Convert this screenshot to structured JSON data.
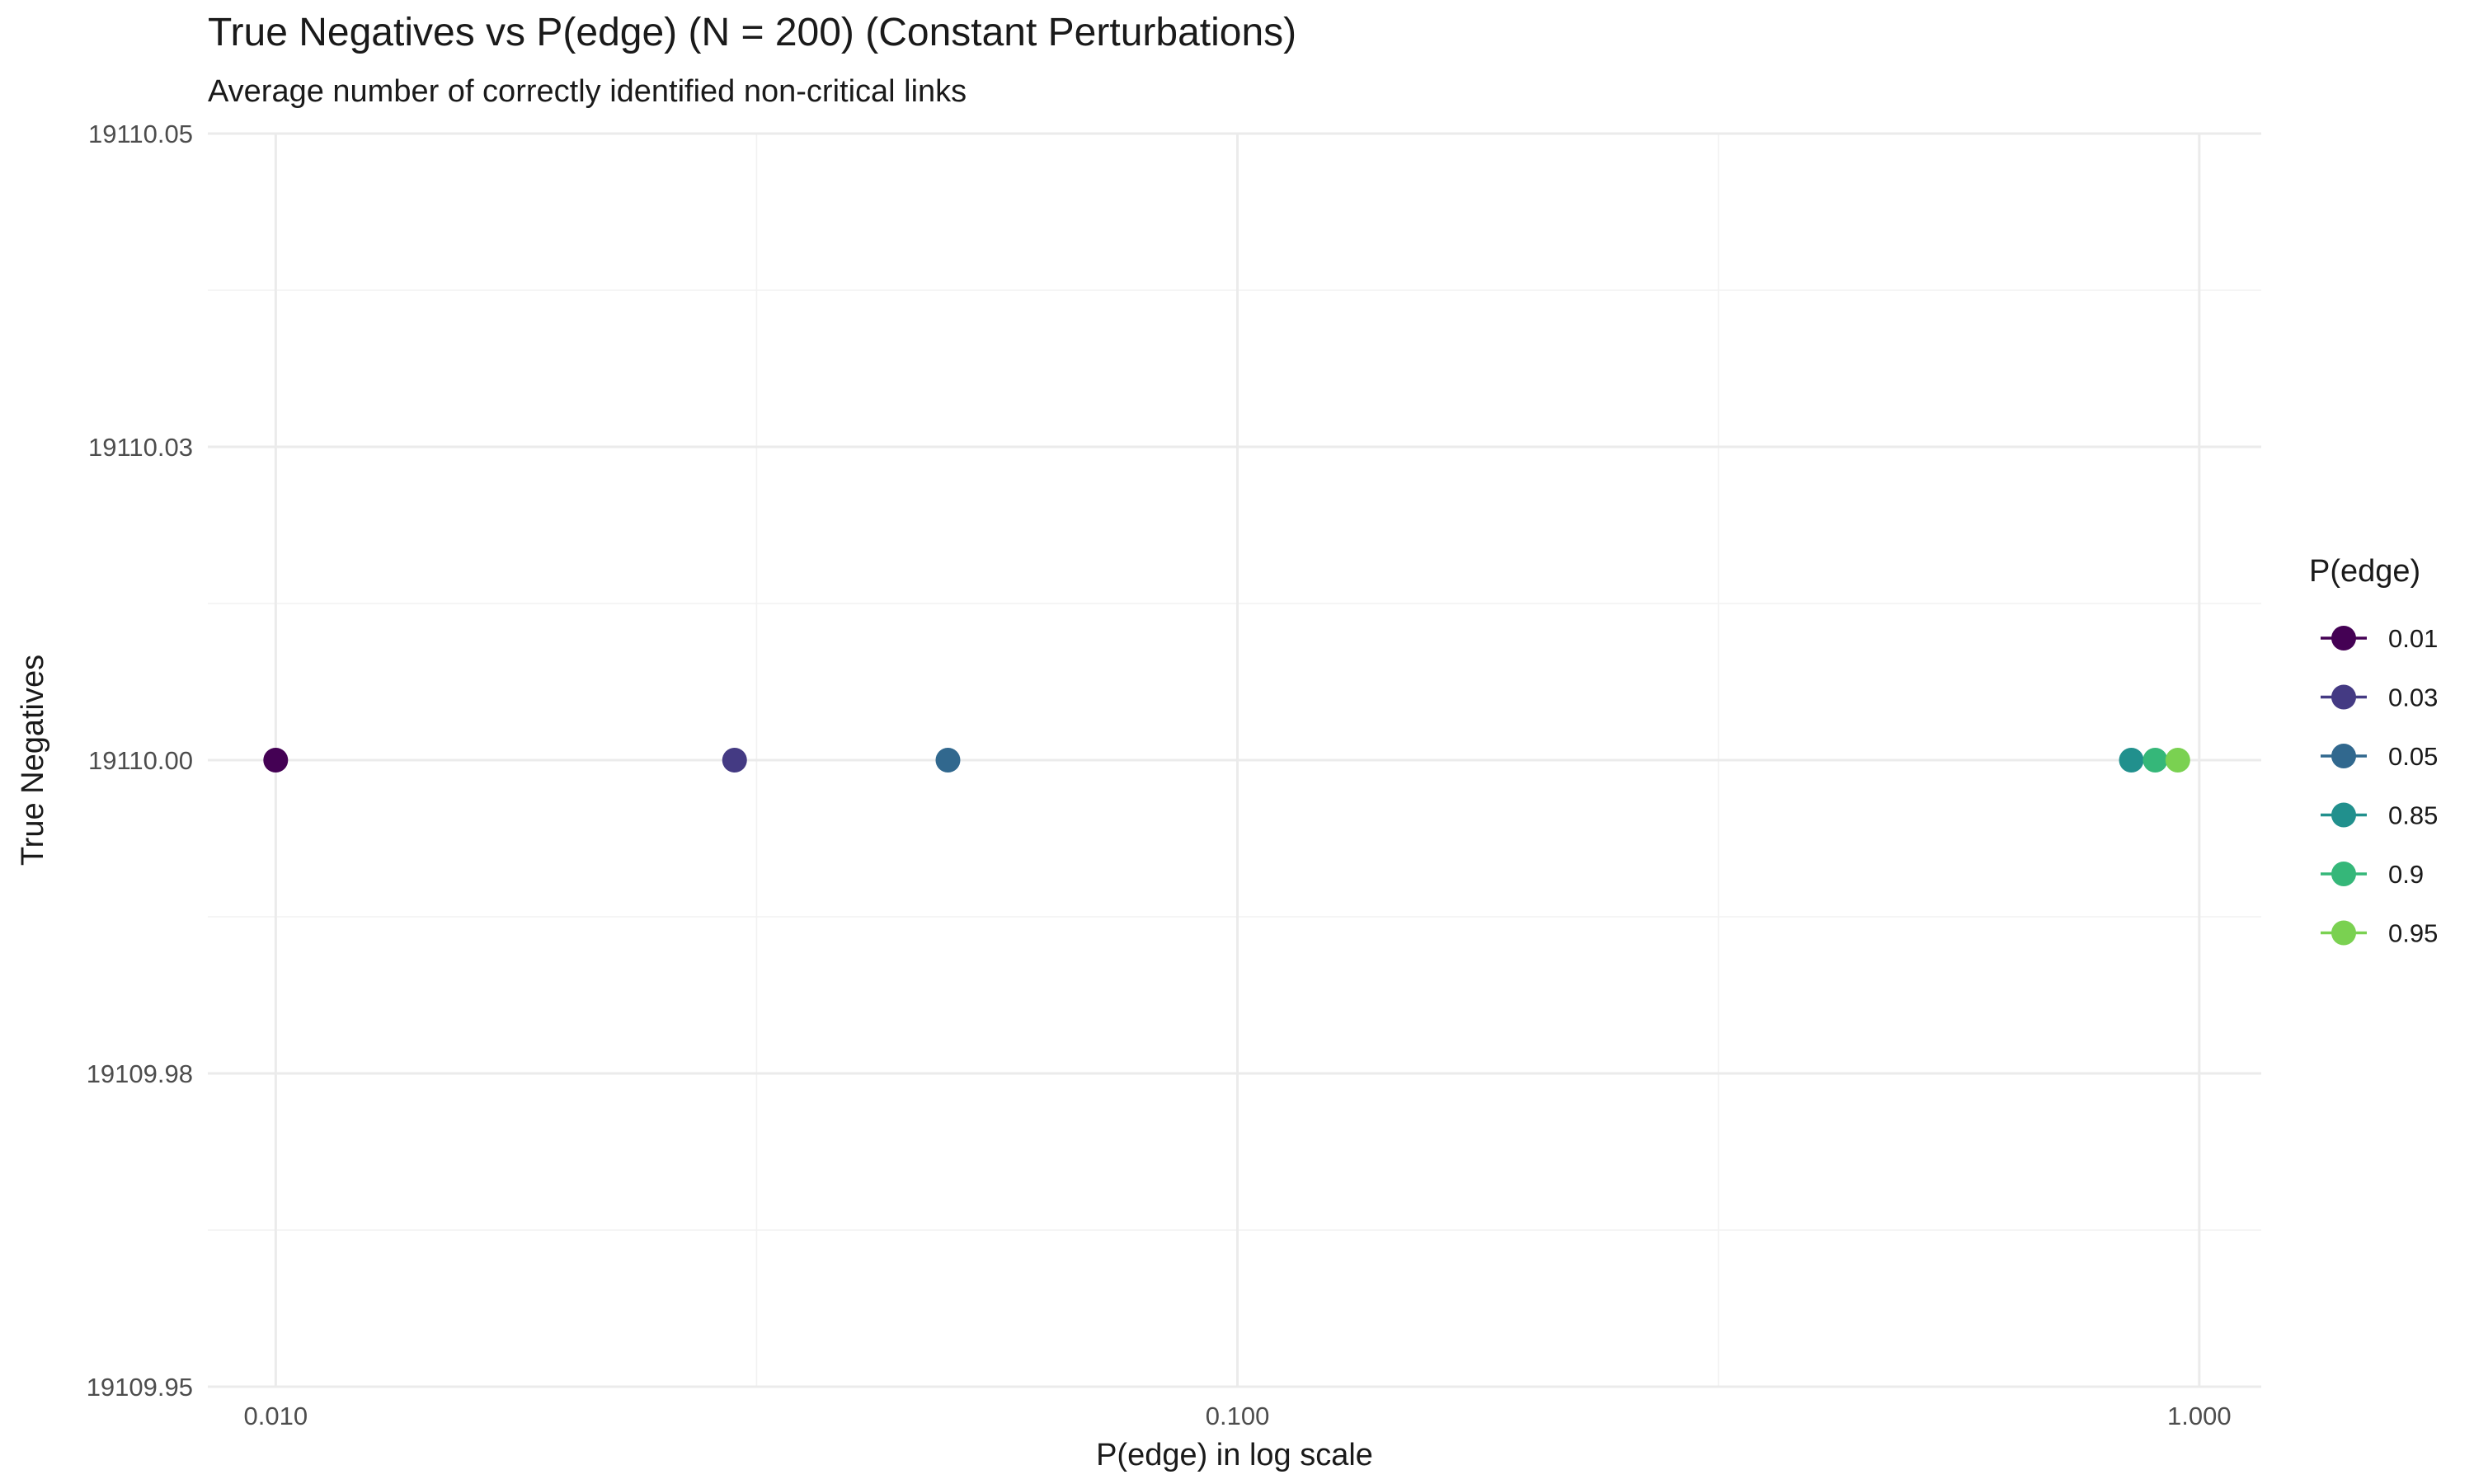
{
  "chart_data": {
    "type": "scatter",
    "title": "True Negatives vs P(edge) (N = 200) (Constant Perturbations)",
    "subtitle": "Average number of correctly identified non-critical links",
    "xlabel": "P(edge) in log scale",
    "ylabel": "True Negatives",
    "x_scale": "log10",
    "xlim": [
      0.0085,
      1.16
    ],
    "ylim": [
      19109.95,
      19110.05
    ],
    "x_ticks": [
      0.01,
      0.1,
      1.0
    ],
    "x_tick_labels": [
      "0.010",
      "0.100",
      "1.000"
    ],
    "y_ticks": [
      19109.95,
      19109.975,
      19110.0,
      19110.025,
      19110.05
    ],
    "y_tick_labels": [
      "19109.95",
      "19109.98",
      "19110.00",
      "19110.03",
      "19110.05"
    ],
    "grid": true,
    "legend": {
      "title": "P(edge)",
      "placement": "right"
    },
    "series": [
      {
        "name": "0.01",
        "color": "#440154",
        "points": [
          {
            "x": 0.01,
            "y": 19110.0
          }
        ]
      },
      {
        "name": "0.03",
        "color": "#443A83",
        "points": [
          {
            "x": 0.03,
            "y": 19110.0
          }
        ]
      },
      {
        "name": "0.05",
        "color": "#31688E",
        "points": [
          {
            "x": 0.05,
            "y": 19110.0
          }
        ]
      },
      {
        "name": "0.85",
        "color": "#21908D",
        "points": [
          {
            "x": 0.85,
            "y": 19110.0
          }
        ]
      },
      {
        "name": "0.9",
        "color": "#35B779",
        "points": [
          {
            "x": 0.9,
            "y": 19110.0
          }
        ]
      },
      {
        "name": "0.95",
        "color": "#7AD151",
        "points": [
          {
            "x": 0.95,
            "y": 19110.0
          }
        ]
      }
    ]
  }
}
